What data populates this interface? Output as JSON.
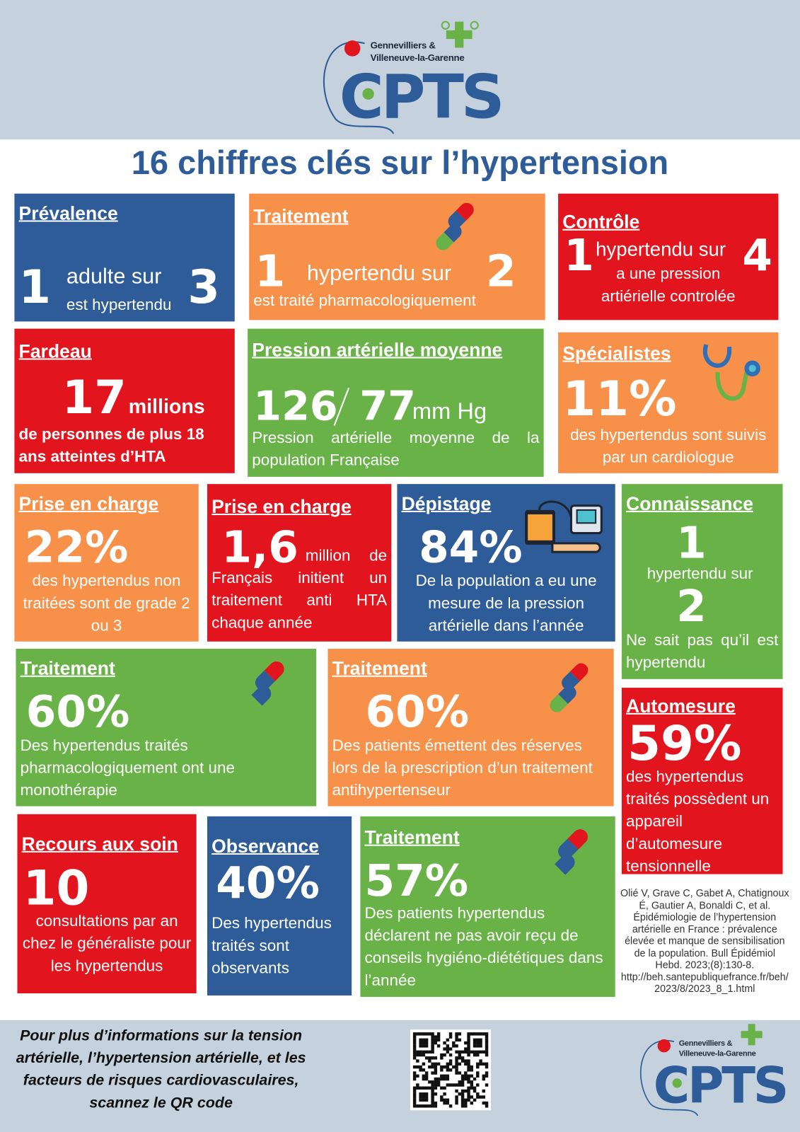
{
  "header": {
    "logo": {
      "line1": "Gennevilliers &",
      "line2": "Villeneuve-la-Garenne",
      "name": "CPTS"
    }
  },
  "title": "16 chiffres clés sur l’hypertension",
  "cards": [
    {
      "title": "Prévalence",
      "number": "1",
      "text": "adulte sur",
      "number2": "3",
      "text2": "est hypertendu"
    },
    {
      "title": "Traitement",
      "number": "1",
      "text": "hypertendu sur",
      "number2": "2",
      "text2": "est traité pharmacologiquement"
    },
    {
      "title": "Contrôle",
      "number": "1",
      "text": "hypertendu sur",
      "number2": "4",
      "text2": "a une pression artiérielle controlée"
    },
    {
      "title": "Fardeau",
      "number": "17",
      "unit": "millions",
      "text": "de personnes de plus 18 ans atteintes d’HTA"
    },
    {
      "title": "Pression artérielle moyenne",
      "number": "126",
      "number2": "77",
      "unit": "mm Hg",
      "text": "Pression artérielle moyenne de la population Française"
    },
    {
      "title": "Spécialistes",
      "number": "11%",
      "text": "des hypertendus sont suivis par un cardiologue"
    },
    {
      "title": "Prise en charge",
      "number": "22%",
      "text": "des hypertendus non traitées sont de grade 2 ou 3"
    },
    {
      "title": "Prise en charge",
      "number": "1,6",
      "text": "million de Français initient un traitement anti HTA chaque année"
    },
    {
      "title": "Dépistage",
      "number": "84%",
      "text": "De la population a eu une mesure de la pression artérielle dans l’année"
    },
    {
      "title": "Connaissance",
      "number": "1",
      "text": "hypertendu sur",
      "number2": "2",
      "text2": "Ne sait pas qu’il est hypertendu"
    },
    {
      "title": "Traitement",
      "number": "60%",
      "text": "Des hypertendus traités pharmacologiquement ont une monothérapie"
    },
    {
      "title": "Traitement",
      "number": "60%",
      "text": "Des patients émettent des réserves lors de la prescription d’un traitement antihypertenseur"
    },
    {
      "title": "Automesure",
      "number": "59%",
      "text": "des hypertendus traités possèdent un appareil d’automesure tensionnelle"
    },
    {
      "title": "Recours aux soin",
      "number": "10",
      "text": "consultations par an chez le généraliste pour les hypertendus"
    },
    {
      "title": "Observance",
      "number": "40%",
      "text": "Des hypertendus traités sont observants"
    },
    {
      "title": "Traitement",
      "number": "57%",
      "text": "Des patients hypertendus déclarent ne pas avoir reçu de conseils hygiéno-diététiques dans l’année"
    }
  ],
  "reference": "Olié V, Grave C, Gabet A, Chatignoux É, Gautier A, Bonaldi C, et al. Épidémiologie de l’hypertension artérielle en France : prévalence élevée et manque de sensibilisation de la population. Bull Épidémiol Hebd. 2023;(8):130-8. http://beh.santepubliquefrance.fr/beh/2023/8/2023_8_1.html",
  "footer": {
    "text": "Pour plus d’informations sur la tension artérielle, l’hypertension artérielle, et les facteurs de risques cardiovasculaires, scannez le QR code"
  }
}
